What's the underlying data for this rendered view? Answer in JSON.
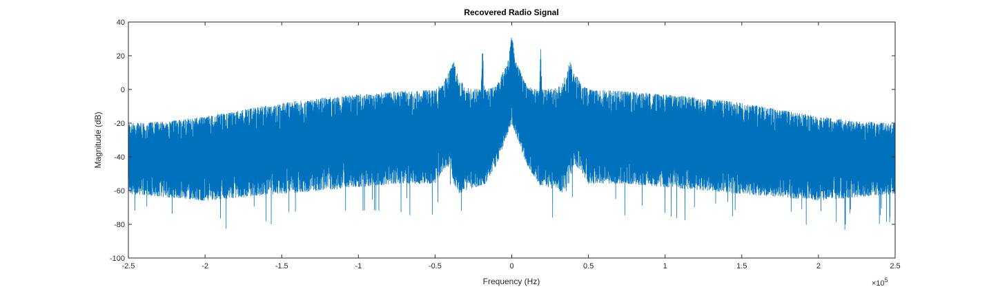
{
  "chart_data": {
    "type": "line",
    "title": "Recovered Radio Signal",
    "xlabel": "Frequency (Hz)",
    "ylabel": "Magnitude (dB)",
    "x_exponent_label": "×10",
    "x_exponent": "5",
    "xlim": [
      -2.5,
      2.5
    ],
    "ylim": [
      -100,
      40
    ],
    "x_ticks": [
      -2.5,
      -2,
      -1.5,
      -1,
      -0.5,
      0,
      0.5,
      1,
      1.5,
      2,
      2.5
    ],
    "x_tick_labels": [
      "-2.5",
      "-2",
      "-1.5",
      "-1",
      "-0.5",
      "0",
      "0.5",
      "1",
      "1.5",
      "2",
      "2.5"
    ],
    "y_ticks": [
      -100,
      -80,
      -60,
      -40,
      -20,
      0,
      20,
      40
    ],
    "y_tick_labels": [
      "-100",
      "-80",
      "-60",
      "-40",
      "-20",
      "0",
      "20",
      "40"
    ],
    "grid": false,
    "line_color": "#0072BD",
    "series": [
      {
        "x": [
          -2.5,
          -2.25,
          -2.0,
          -1.75,
          -1.5,
          -1.25,
          -1.0,
          -0.75,
          -0.5,
          -0.45,
          -0.4,
          -0.38,
          -0.35,
          -0.3,
          -0.2,
          -0.19,
          -0.18,
          -0.1,
          -0.05,
          -0.02,
          0,
          0.02,
          0.05,
          0.1,
          0.18,
          0.19,
          0.2,
          0.3,
          0.35,
          0.38,
          0.4,
          0.45,
          0.5,
          0.75,
          1.0,
          1.25,
          1.5,
          1.75,
          2.0,
          2.25,
          2.5
        ],
        "upper": [
          -20,
          -19,
          -16,
          -12,
          -8,
          -5,
          -3,
          -1,
          0,
          4,
          12,
          17,
          8,
          1,
          0,
          29,
          0,
          2,
          12,
          18,
          34,
          18,
          12,
          2,
          0,
          29,
          0,
          1,
          8,
          17,
          12,
          4,
          0,
          -1,
          -3,
          -5,
          -8,
          -12,
          -16,
          -19,
          -20
        ],
        "lower": [
          -62,
          -64,
          -66,
          -64,
          -62,
          -60,
          -58,
          -56,
          -56,
          -48,
          -45,
          -55,
          -62,
          -60,
          -57,
          -57,
          -57,
          -45,
          -33,
          -25,
          -20,
          -25,
          -33,
          -45,
          -57,
          -57,
          -57,
          -60,
          -62,
          -55,
          -45,
          -48,
          -56,
          -56,
          -58,
          -60,
          -62,
          -64,
          -66,
          -64,
          -62
        ]
      }
    ]
  }
}
